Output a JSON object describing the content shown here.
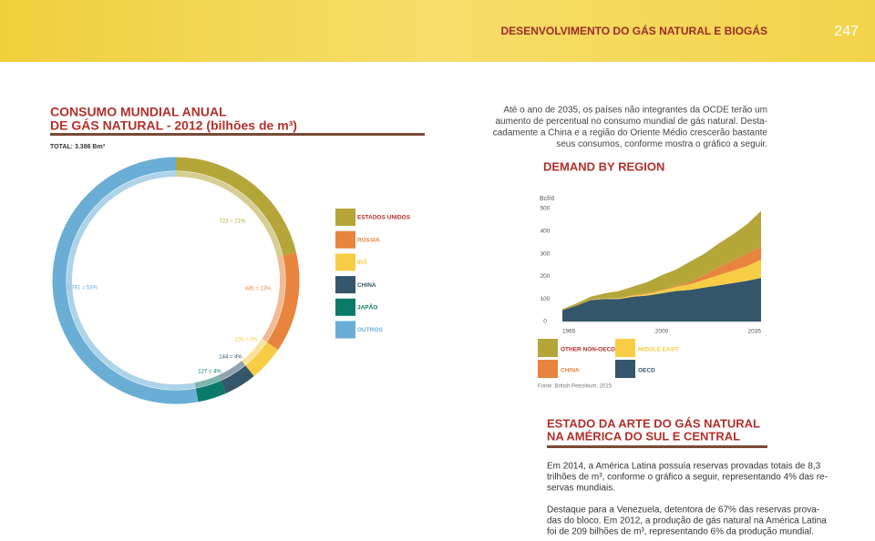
{
  "header": {
    "title": "DESENVOLVIMENTO DO GÁS NATURAL E BIOGÁS",
    "page": "247"
  },
  "consumption": {
    "title_lines": [
      "CONSUMO MUNDIAL ANUAL",
      "DE GÁS NATURAL - 2012 (bilhões de m³)"
    ],
    "total": "TOTAL: 3.386 Bm³",
    "chart": {
      "type": "pie",
      "categories": [
        "ESTADOS UNIDOS",
        "RÚSSIA",
        "IRÃ",
        "CHINA",
        "JAPÃO",
        "OUTROS"
      ],
      "values": [
        723,
        445,
        156,
        144,
        127,
        1791
      ],
      "value_labels": [
        "723 = 21%",
        "445 = 13%",
        "156 = 5%",
        "144 = 4%",
        "127 = 4%",
        "1.791 = 53%"
      ],
      "colors": [
        "#b5a63a",
        "#e8843e",
        "#f8cd46",
        "#34566a",
        "#0b7a6a",
        "#6aaed6"
      ]
    }
  },
  "intro": {
    "lines": [
      "Até o ano de 2035, os países não integrantes da OCDE terão um",
      "aumento de percentual no consumo mundial de gás natural. Desta-",
      "cadamente a China e a região do Oriente Médio crescerão bastante",
      "seus consumos, conforme mostra o gráfico a seguir."
    ]
  },
  "demand": {
    "title": "DEMAND BY REGION",
    "chart": {
      "type": "area",
      "stacked": true,
      "y_label": "Bcf/d",
      "x": [
        1965,
        1970,
        1975,
        1980,
        1985,
        1990,
        1995,
        2000,
        2005,
        2010,
        2015,
        2020,
        2025,
        2030,
        2035
      ],
      "xlim": [
        1965,
        2035
      ],
      "ylim": [
        0,
        500
      ],
      "xticks": [
        1965,
        2000,
        2035
      ],
      "yticks": [
        0,
        100,
        200,
        300,
        400,
        500
      ],
      "series": [
        {
          "name": "OECD",
          "color": "#34566a",
          "values": [
            50,
            70,
            95,
            100,
            100,
            110,
            115,
            125,
            135,
            140,
            150,
            160,
            170,
            180,
            193
          ]
        },
        {
          "name": "MIDDLE EAST",
          "color": "#f8cd46",
          "values": [
            0,
            0,
            1,
            2,
            3,
            5,
            8,
            12,
            18,
            25,
            35,
            45,
            55,
            65,
            81
          ]
        },
        {
          "name": "CHINA",
          "color": "#e8843e",
          "values": [
            0,
            0,
            1,
            1,
            1,
            2,
            2,
            3,
            5,
            10,
            20,
            35,
            45,
            55,
            56
          ]
        },
        {
          "name": "OTHER NON-OECD",
          "color": "#b5a63a",
          "values": [
            5,
            10,
            13,
            22,
            31,
            38,
            50,
            65,
            72,
            90,
            95,
            105,
            115,
            130,
            160
          ]
        }
      ]
    },
    "source": "Fonte: British Petroleum, 2015"
  },
  "latin": {
    "title_lines": [
      "ESTADO DA ARTE DO GÁS NATURAL",
      "NA AMÉRICA DO SUL E CENTRAL"
    ],
    "paragraphs": [
      [
        "Em 2014, a América Latina possuía reservas provadas totais de 8,3",
        "trilhões de m³, conforme o gráfico a seguir, representando 4% das re-",
        "servas mundiais."
      ],
      [
        "Destaque para a Venezuela, detentora de 67% das reservas prova-",
        "das do bloco. Em 2012, a produção de gás natural na América Latina",
        "foi de 209 bilhões de m³, representando 6% da produção mundial."
      ]
    ]
  }
}
